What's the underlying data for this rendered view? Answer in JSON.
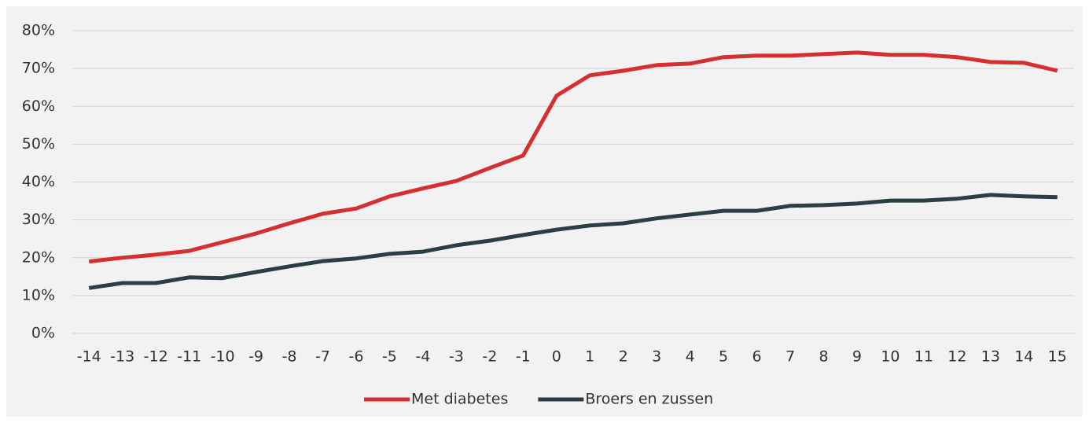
{
  "chart_data": {
    "type": "line",
    "categories": [
      "-14",
      "-13",
      "-12",
      "-11",
      "-10",
      "-9",
      "-8",
      "-7",
      "-6",
      "-5",
      "-4",
      "-3",
      "-2",
      "-1",
      "0",
      "1",
      "2",
      "3",
      "4",
      "5",
      "6",
      "7",
      "8",
      "9",
      "10",
      "11",
      "12",
      "13",
      "14",
      "15"
    ],
    "series": [
      {
        "name": "Met diabetes",
        "color": "#d62f2f",
        "values": [
          19,
          20,
          20.8,
          21.8,
          24.1,
          26.4,
          29.1,
          31.6,
          33,
          36.2,
          38.3,
          40.3,
          43.7,
          47,
          62.8,
          68.2,
          69.4,
          70.9,
          71.3,
          73,
          73.4,
          73.4,
          73.8,
          74.2,
          73.6,
          73.6,
          73,
          71.7,
          71.5,
          69.4
        ]
      },
      {
        "name": "Broers en zussen",
        "color": "#2b3d45",
        "values": [
          12,
          13.3,
          13.3,
          14.8,
          14.6,
          16.2,
          17.7,
          19.1,
          19.8,
          21,
          21.6,
          23.3,
          24.5,
          26,
          27.4,
          28.5,
          29.1,
          30.4,
          31.4,
          32.4,
          32.4,
          33.7,
          33.9,
          34.3,
          35.1,
          35.1,
          35.6,
          36.6,
          36.2,
          36
        ]
      }
    ],
    "ylim": [
      0,
      80
    ],
    "yticks": [
      {
        "value": 0,
        "label": "0%"
      },
      {
        "value": 10,
        "label": "10%"
      },
      {
        "value": 20,
        "label": "20%"
      },
      {
        "value": 30,
        "label": "30%"
      },
      {
        "value": 40,
        "label": "40%"
      },
      {
        "value": 50,
        "label": "50%"
      },
      {
        "value": 60,
        "label": "60%"
      },
      {
        "value": 70,
        "label": "70%"
      },
      {
        "value": 80,
        "label": "80%"
      }
    ],
    "grid": true,
    "legend": "bottom"
  }
}
